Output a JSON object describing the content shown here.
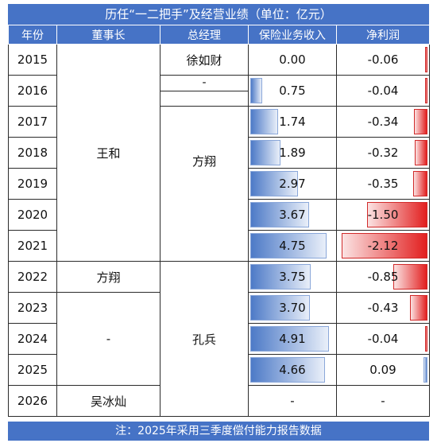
{
  "title": "历任“一二把手”及经营业绩（单位：亿元）",
  "headers": {
    "year": "年份",
    "chairman": "董事长",
    "gm": "总经理",
    "premium": "保险业务收入",
    "profit": "净利润"
  },
  "chairman_groups": [
    {
      "name": "王和",
      "rows": 7
    },
    {
      "name": "方翔",
      "rows": 1
    },
    {
      "name": "-",
      "rows": 3
    },
    {
      "name": "吴冰灿",
      "rows": 1
    }
  ],
  "gm_groups": [
    {
      "name": "徐如财",
      "rows": 1
    },
    {
      "name": "-",
      "rows": 0.5
    },
    {
      "name": "方翔",
      "rows": 5.5
    },
    {
      "name": "孔兵",
      "rows": 5
    }
  ],
  "chart_data": {
    "type": "table",
    "columns": [
      "年份",
      "保险业务收入",
      "净利润"
    ],
    "rows": [
      {
        "year": "2015",
        "premium": "0.00",
        "profit": "-0.06"
      },
      {
        "year": "2016",
        "premium": "0.75",
        "profit": "-0.04"
      },
      {
        "year": "2017",
        "premium": "1.74",
        "profit": "-0.34"
      },
      {
        "year": "2018",
        "premium": "1.89",
        "profit": "-0.32"
      },
      {
        "year": "2019",
        "premium": "2.97",
        "profit": "-0.35"
      },
      {
        "year": "2020",
        "premium": "3.67",
        "profit": "-1.50"
      },
      {
        "year": "2021",
        "premium": "4.75",
        "profit": "-2.12"
      },
      {
        "year": "2022",
        "premium": "3.75",
        "profit": "-0.85"
      },
      {
        "year": "2023",
        "premium": "3.70",
        "profit": "-0.43"
      },
      {
        "year": "2024",
        "premium": "4.91",
        "profit": "-0.04"
      },
      {
        "year": "2025",
        "premium": "4.66",
        "profit": "0.09"
      },
      {
        "year": "2026",
        "premium": "-",
        "profit": "-"
      }
    ],
    "premium_max": 5.2,
    "profit_max_abs": 2.12
  },
  "colors": {
    "header_bg": "#4673c6",
    "premium_bar": "#4d7ac7",
    "profit_negative_bar": "#e21f1f"
  },
  "footer": "注：2025年采用三季度偿付能力报告数据"
}
